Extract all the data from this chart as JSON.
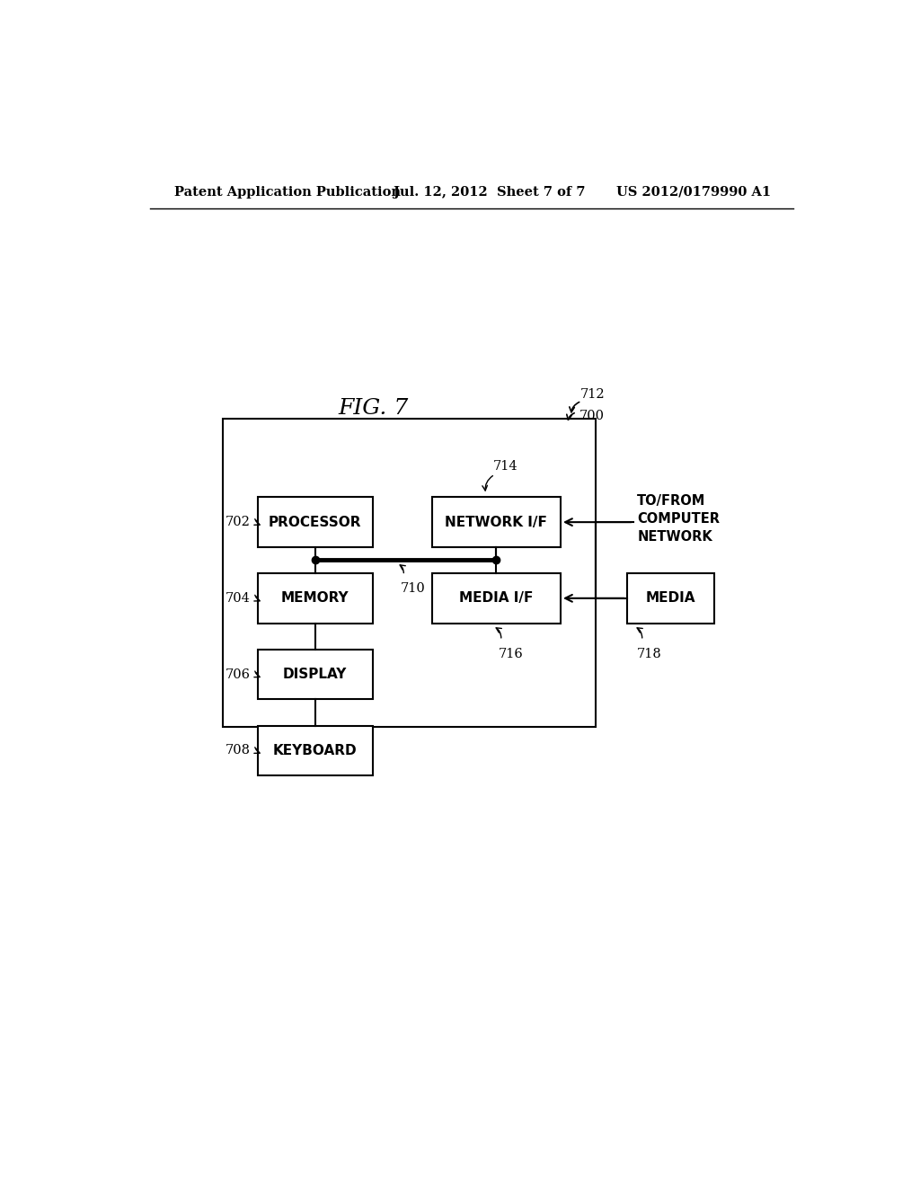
{
  "bg_color": "#ffffff",
  "header_left": "Patent Application Publication",
  "header_mid": "Jul. 12, 2012  Sheet 7 of 7",
  "header_right": "US 2012/0179990 A1",
  "fig_label": "FIG. 7",
  "ref_700": "700",
  "ref_712": "712",
  "ref_710": "710",
  "ref_702": "702",
  "ref_704": "704",
  "ref_706": "706",
  "ref_708": "708",
  "ref_714": "714",
  "ref_716": "716",
  "ref_718": "718",
  "box_processor_label": "PROCESSOR",
  "box_memory_label": "MEMORY",
  "box_display_label": "DISPLAY",
  "box_keyboard_label": "KEYBOARD",
  "box_network_label": "NETWORK I/F",
  "box_media_if_label": "MEDIA I/F",
  "box_media_label": "MEDIA",
  "text_to_from": "TO/FROM\nCOMPUTER\nNETWORK"
}
